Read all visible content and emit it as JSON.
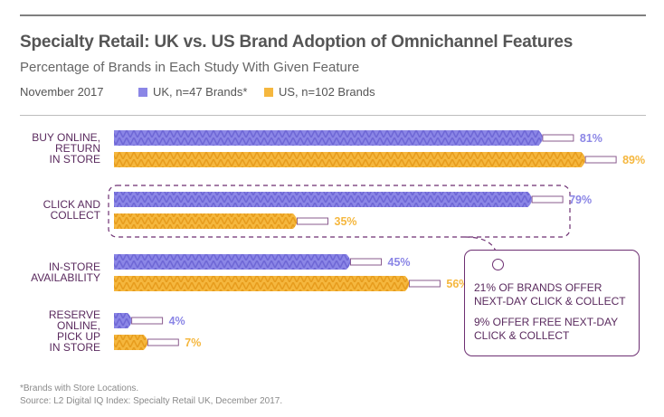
{
  "header": {
    "title": "Specialty Retail: UK vs. US Brand Adoption of Omnichannel Features",
    "subtitle": "Percentage of Brands in Each Study With Given Feature",
    "date": "November 2017"
  },
  "colors": {
    "uk": "#8b86e6",
    "us": "#f5b73e",
    "category_text": "#5a2a5e",
    "callout_border": "#6d2f72"
  },
  "chart_data": {
    "type": "bar",
    "orientation": "horizontal",
    "categories": [
      [
        "BUY ONLINE,",
        "RETURN",
        "IN STORE"
      ],
      [
        "CLICK AND",
        "COLLECT"
      ],
      [
        "IN-STORE",
        "AVAILABILITY"
      ],
      [
        "RESERVE",
        "ONLINE,",
        "PICK UP",
        "IN STORE"
      ]
    ],
    "series": [
      {
        "name": "UK, n=47 Brands*",
        "values": [
          81,
          79,
          45,
          4
        ],
        "labels": [
          "81%",
          "79%",
          "45%",
          "4%"
        ]
      },
      {
        "name": "US, n=102 Brands",
        "values": [
          89,
          35,
          56,
          7
        ],
        "labels": [
          "89%",
          "35%",
          "56%",
          "7%"
        ]
      }
    ],
    "xlim": [
      0,
      100
    ],
    "grid": false,
    "legend": "top-left"
  },
  "callout": {
    "line1": "21% OF BRANDS OFFER NEXT-DAY CLICK & COLLECT",
    "line2": "9% OFFER FREE NEXT-DAY CLICK & COLLECT"
  },
  "footer": {
    "footnote": "*Brands with Store Locations.",
    "source": "Source: L2 Digital IQ Index: Specialty Retail UK, December 2017."
  }
}
